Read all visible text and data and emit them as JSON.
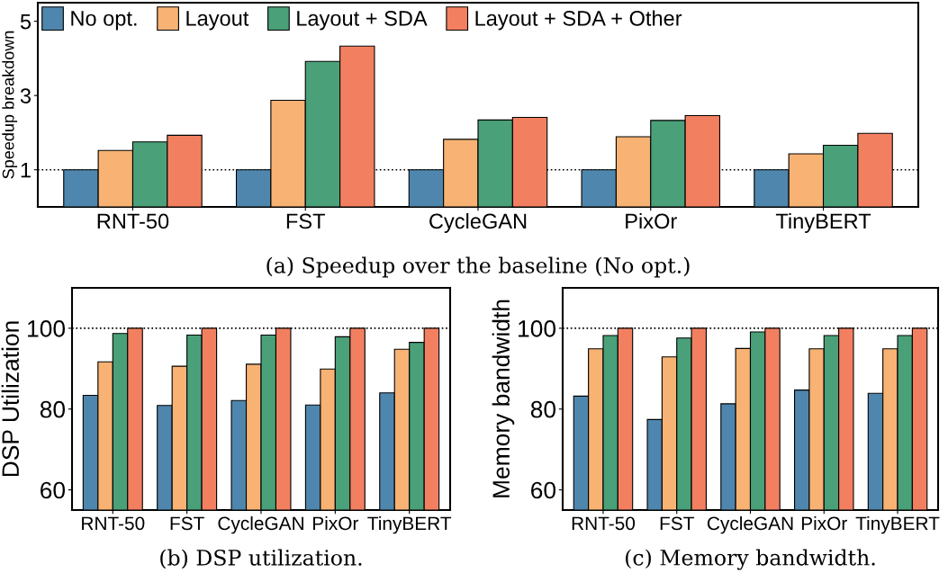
{
  "chart_data": [
    {
      "type": "bar",
      "ylabel": "Speedup breakdown",
      "categories": [
        "RNT-50",
        "FST",
        "CycleGAN",
        "PixOr",
        "TinyBERT"
      ],
      "ylim": [
        0,
        5.5
      ],
      "yticks": [
        1,
        3,
        5
      ],
      "legend": "top left",
      "grid": false,
      "series": [
        {
          "name": "No opt.",
          "color": "#4f86ad",
          "values": [
            1,
            1,
            1,
            1,
            1
          ]
        },
        {
          "name": "Layout",
          "color": "#f7b274",
          "values": [
            1.52,
            2.87,
            1.82,
            1.89,
            1.43
          ]
        },
        {
          "name": "Layout + SDA",
          "color": "#4aa078",
          "values": [
            1.75,
            3.92,
            2.34,
            2.33,
            1.66
          ]
        },
        {
          "name": "Layout + SDA + Other",
          "color": "#f28060",
          "values": [
            1.93,
            4.33,
            2.41,
            2.46,
            1.98
          ]
        }
      ],
      "ref_lines": [
        {
          "axis": "y",
          "value": 1,
          "line_style": "dotted",
          "color": "#000000"
        }
      ],
      "annotations": [
        "(a) Speedup over the baseline (No opt.)"
      ]
    },
    {
      "type": "bar",
      "ylabel": "DSP Utilization",
      "categories": [
        "RNT-50",
        "FST",
        "CycleGAN",
        "PixOr",
        "TinyBERT"
      ],
      "ylim": [
        55,
        110
      ],
      "yticks": [
        60,
        80,
        100
      ],
      "grid": false,
      "series": [
        {
          "color": "#4f86ad",
          "values": [
            83.4,
            80.9,
            82.1,
            81.0,
            84.0
          ]
        },
        {
          "color": "#f7b274",
          "values": [
            91.7,
            90.6,
            91.1,
            89.9,
            94.8
          ]
        },
        {
          "color": "#4aa078",
          "values": [
            98.7,
            98.3,
            98.3,
            97.9,
            96.5
          ]
        },
        {
          "color": "#f28060",
          "values": [
            100,
            100,
            100,
            100,
            100
          ]
        }
      ],
      "ref_lines": [
        {
          "axis": "y",
          "value": 100,
          "line_style": "dotted",
          "color": "#000000"
        }
      ],
      "annotations": [
        "(b) DSP utilization."
      ]
    },
    {
      "type": "bar",
      "ylabel": "Memory bandwidth",
      "categories": [
        "RNT-50",
        "FST",
        "CycleGAN",
        "PixOr",
        "TinyBERT"
      ],
      "ylim": [
        55,
        110
      ],
      "yticks": [
        60,
        80,
        100
      ],
      "grid": false,
      "series": [
        {
          "color": "#4f86ad",
          "values": [
            83.2,
            77.4,
            81.3,
            84.7,
            83.9
          ]
        },
        {
          "color": "#f7b274",
          "values": [
            94.9,
            92.9,
            95.0,
            94.9,
            94.9
          ]
        },
        {
          "color": "#4aa078",
          "values": [
            98.2,
            97.6,
            99.1,
            98.2,
            98.2
          ]
        },
        {
          "color": "#f28060",
          "values": [
            100,
            100,
            100,
            100,
            100
          ]
        }
      ],
      "ref_lines": [
        {
          "axis": "y",
          "value": 100,
          "line_style": "dotted",
          "color": "#000000"
        }
      ],
      "annotations": [
        "(c) Memory bandwidth."
      ]
    }
  ]
}
